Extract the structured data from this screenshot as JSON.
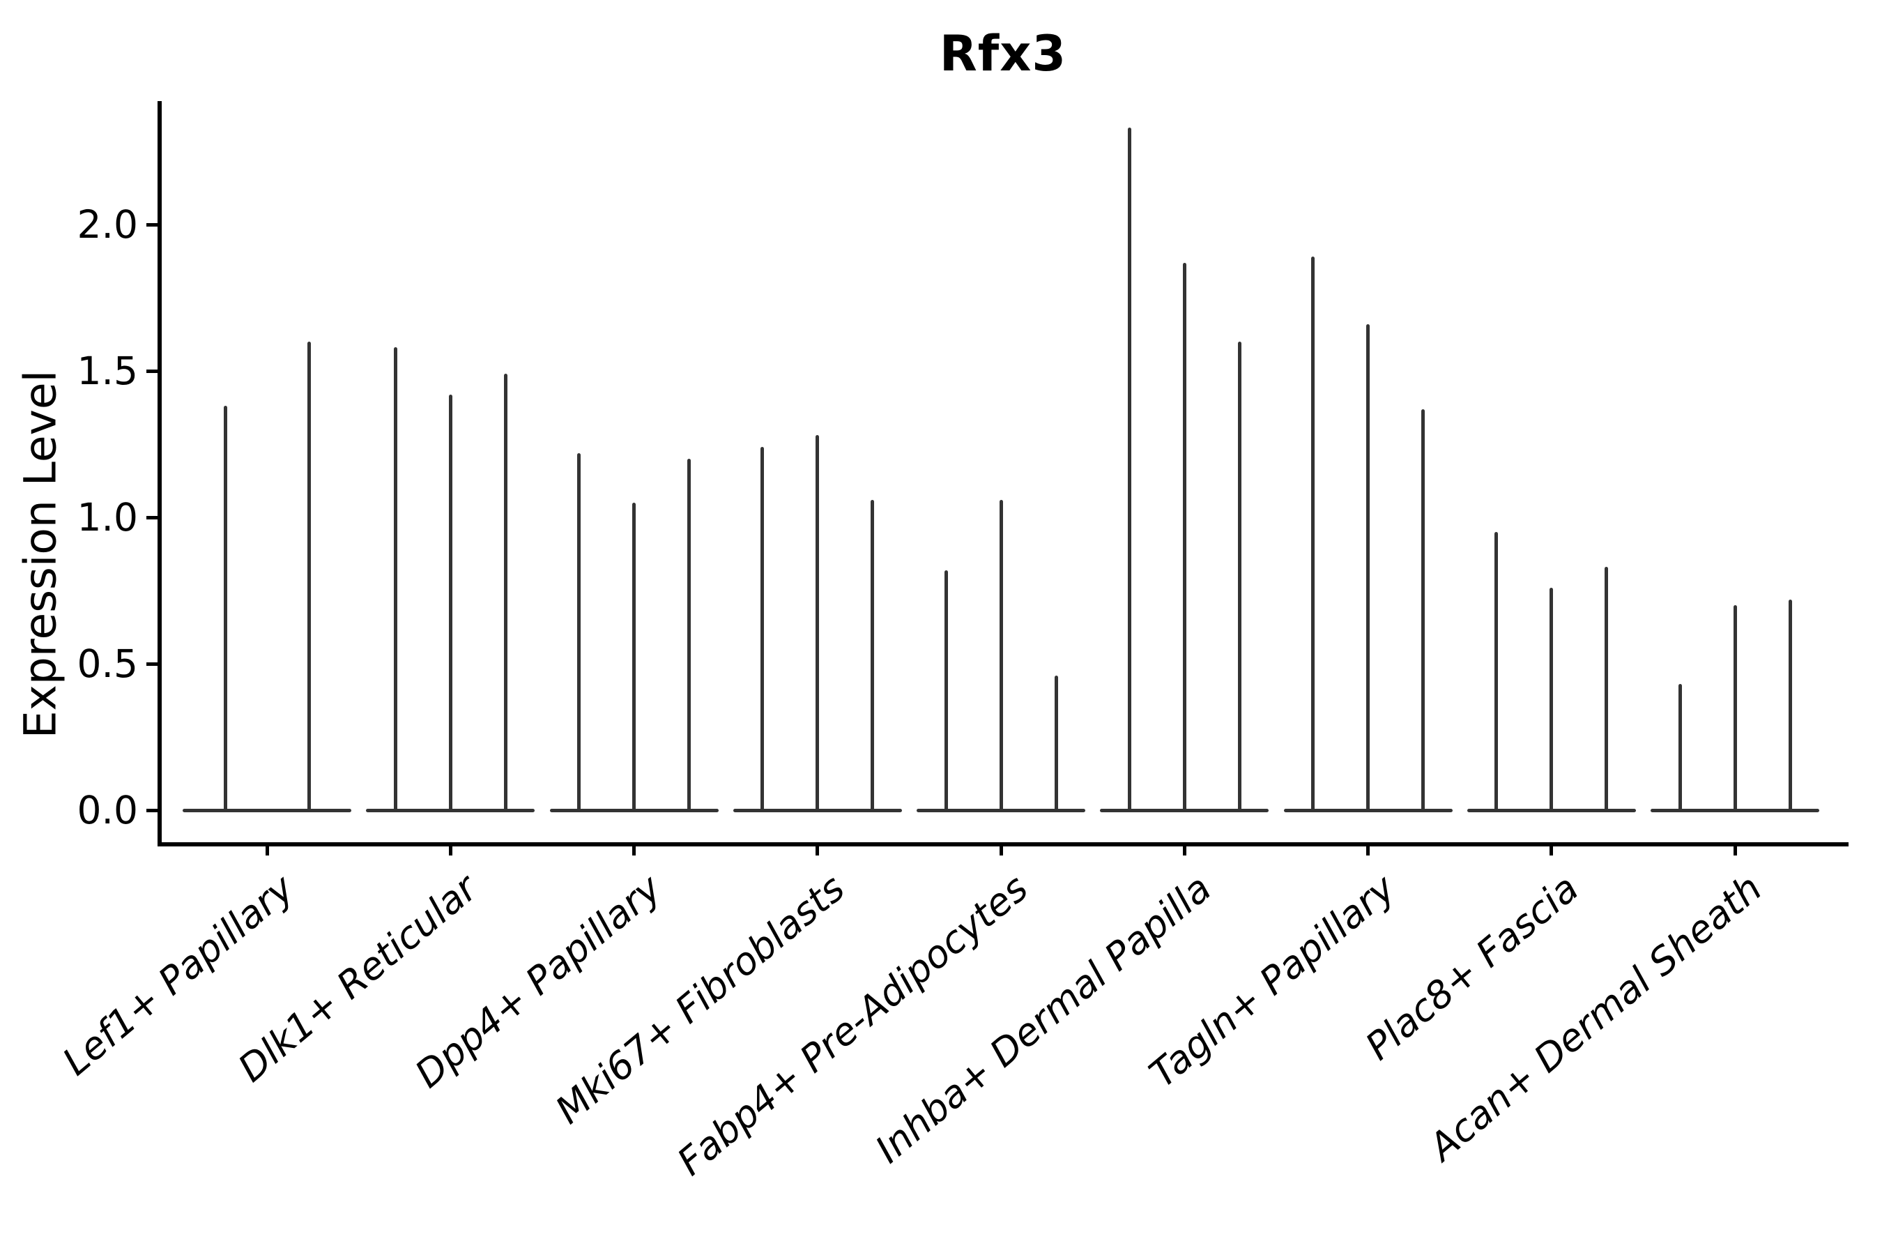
{
  "title": "Rfx3",
  "axes": {
    "ylabel": "Expression Level",
    "ylim": [
      0.0,
      2.45
    ],
    "yticks": [
      0.0,
      0.5,
      1.0,
      1.5,
      2.0
    ],
    "grid": false,
    "xlabel_rotation_deg": 40,
    "xlabel_style": "italic"
  },
  "colors": {
    "background": "#ffffff",
    "violin": "#333333",
    "axis": "#000000",
    "text": "#000000"
  },
  "chart_data": {
    "type": "violin",
    "title": "Rfx3",
    "xlabel": "",
    "ylabel": "Expression Level",
    "ylim": [
      0.0,
      2.45
    ],
    "yticks": [
      0.0,
      0.5,
      1.0,
      1.5,
      2.0
    ],
    "grid": false,
    "legend": "none",
    "description": "Very narrow violin plots (spike-like) with wide flat bases at expression 0; values are the maximum expression reached by each violin, 2-3 violins per cell-type group",
    "categories": [
      "Lef1+ Papillary",
      "Dlk1+ Reticular",
      "Dpp4+ Papillary",
      "Mki67+ Fibroblasts",
      "Fabp4+ Pre-Adipocytes",
      "Inhba+ Dermal Papilla",
      "Tagln+ Papillary",
      "Plac8+ Fascia",
      "Acan+ Dermal Sheath"
    ],
    "series": [
      {
        "category": "Lef1+ Papillary",
        "violin_maxima": [
          1.38,
          1.6
        ]
      },
      {
        "category": "Dlk1+ Reticular",
        "violin_maxima": [
          1.58,
          1.42,
          1.49
        ]
      },
      {
        "category": "Dpp4+ Papillary",
        "violin_maxima": [
          1.22,
          1.05,
          1.2
        ]
      },
      {
        "category": "Mki67+ Fibroblasts",
        "violin_maxima": [
          1.24,
          1.28,
          1.06
        ]
      },
      {
        "category": "Fabp4+ Pre-Adipocytes",
        "violin_maxima": [
          0.82,
          1.06,
          0.46
        ]
      },
      {
        "category": "Inhba+ Dermal Papilla",
        "violin_maxima": [
          2.33,
          1.87,
          1.6
        ]
      },
      {
        "category": "Tagln+ Papillary",
        "violin_maxima": [
          1.89,
          1.66,
          1.37
        ]
      },
      {
        "category": "Plac8+ Fascia",
        "violin_maxima": [
          0.95,
          0.76,
          0.83
        ]
      },
      {
        "category": "Acan+ Dermal Sheath",
        "violin_maxima": [
          0.43,
          0.7,
          0.72
        ]
      }
    ]
  }
}
